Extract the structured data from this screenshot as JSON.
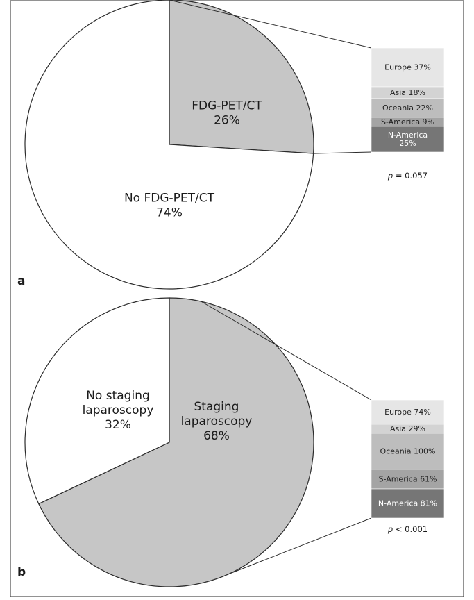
{
  "chart_data": [
    {
      "type": "pie",
      "panel_label": "a",
      "slices": [
        {
          "label_lines": [
            "FDG-PET/CT",
            "26%"
          ],
          "value": 26,
          "color": "#c6c6c6",
          "exploded": true
        },
        {
          "label_lines": [
            "No FDG-PET/CT",
            "74%"
          ],
          "value": 74,
          "color": "#ffffff",
          "exploded": false
        }
      ],
      "breakdown": {
        "segments": [
          {
            "label_lines": [
              "Europe 37%"
            ],
            "value": 37,
            "color": "#e6e6e6"
          },
          {
            "label_lines": [
              "Asia 18%"
            ],
            "value": 18,
            "color": "#d3d3d3"
          },
          {
            "label_lines": [
              "Oceania 22%"
            ],
            "value": 22,
            "color": "#bdbdbd"
          },
          {
            "label_lines": [
              "S-America 9%"
            ],
            "value": 9,
            "color": "#a4a4a4"
          },
          {
            "label_lines": [
              "N-America",
              "25%"
            ],
            "value": 25,
            "color": "#767676"
          }
        ],
        "p_symbol": "p",
        "p_text": " = 0.057"
      }
    },
    {
      "type": "pie",
      "panel_label": "b",
      "slices": [
        {
          "label_lines": [
            "Staging",
            "laparoscopy",
            "68%"
          ],
          "value": 68,
          "color": "#c6c6c6",
          "exploded": true
        },
        {
          "label_lines": [
            "No staging",
            "laparoscopy",
            "32%"
          ],
          "value": 32,
          "color": "#ffffff",
          "exploded": false
        }
      ],
      "breakdown": {
        "segments": [
          {
            "label_lines": [
              "Europe 74%"
            ],
            "value": 74,
            "color": "#e6e6e6"
          },
          {
            "label_lines": [
              "Asia 29%"
            ],
            "value": 29,
            "color": "#d3d3d3"
          },
          {
            "label_lines": [
              "Oceania 100%"
            ],
            "value": 100,
            "color": "#bdbdbd"
          },
          {
            "label_lines": [
              "S-America 61%"
            ],
            "value": 61,
            "color": "#a4a4a4"
          },
          {
            "label_lines": [
              "N-America 81%"
            ],
            "value": 81,
            "color": "#767676"
          }
        ],
        "p_symbol": "p",
        "p_text": " < 0.001"
      }
    }
  ]
}
